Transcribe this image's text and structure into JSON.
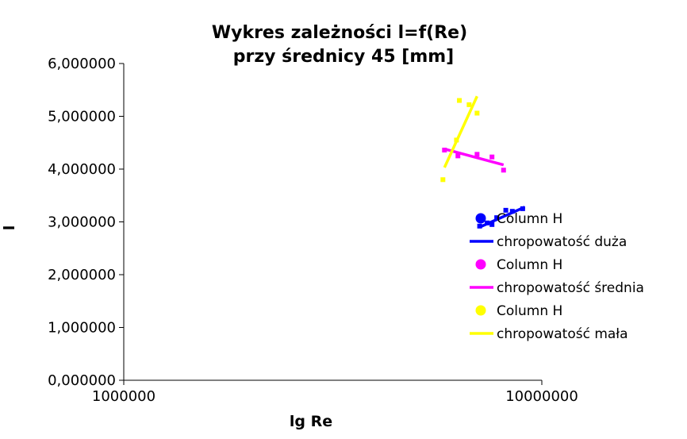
{
  "chart_data": {
    "type": "scatter",
    "title": [
      "Wykres zależności l=f(Re)",
      "przy średnicy 45 [mm]"
    ],
    "xlabel": "lg Re",
    "ylabel": "l",
    "x_scale": "log",
    "xlim": [
      1000000,
      10000000
    ],
    "ylim": [
      0,
      6
    ],
    "x_ticks": [
      "1000000",
      "10000000"
    ],
    "y_ticks": [
      "0,000000",
      "1,000000",
      "2,000000",
      "3,000000",
      "4,000000",
      "5,000000",
      "6,000000"
    ],
    "grid": false,
    "legend_position": "right",
    "series": [
      {
        "name": "Column H",
        "trend_name": "chropowatość duża",
        "color": "#0000ff",
        "points": [
          [
            7100000,
            2.92
          ],
          [
            7400000,
            2.98
          ],
          [
            7600000,
            2.95
          ],
          [
            7800000,
            3.08
          ],
          [
            8200000,
            3.22
          ],
          [
            8500000,
            3.2
          ],
          [
            9000000,
            3.25
          ]
        ],
        "trend": [
          [
            7100000,
            2.9
          ],
          [
            9100000,
            3.28
          ]
        ]
      },
      {
        "name": "Column H",
        "trend_name": "chropowatość średnia",
        "color": "#ff00ff",
        "points": [
          [
            5850000,
            4.36
          ],
          [
            6300000,
            4.25
          ],
          [
            7000000,
            4.28
          ],
          [
            7600000,
            4.23
          ],
          [
            8100000,
            3.98
          ]
        ],
        "trend": [
          [
            5850000,
            4.38
          ],
          [
            8100000,
            4.08
          ]
        ]
      },
      {
        "name": "Column H",
        "trend_name": "chropowatość mała",
        "color": "#ffff00",
        "points": [
          [
            5800000,
            3.8
          ],
          [
            6250000,
            4.55
          ],
          [
            6350000,
            5.3
          ],
          [
            6700000,
            5.22
          ],
          [
            7000000,
            5.06
          ]
        ],
        "trend": [
          [
            5850000,
            4.03
          ],
          [
            7000000,
            5.38
          ]
        ]
      }
    ]
  }
}
